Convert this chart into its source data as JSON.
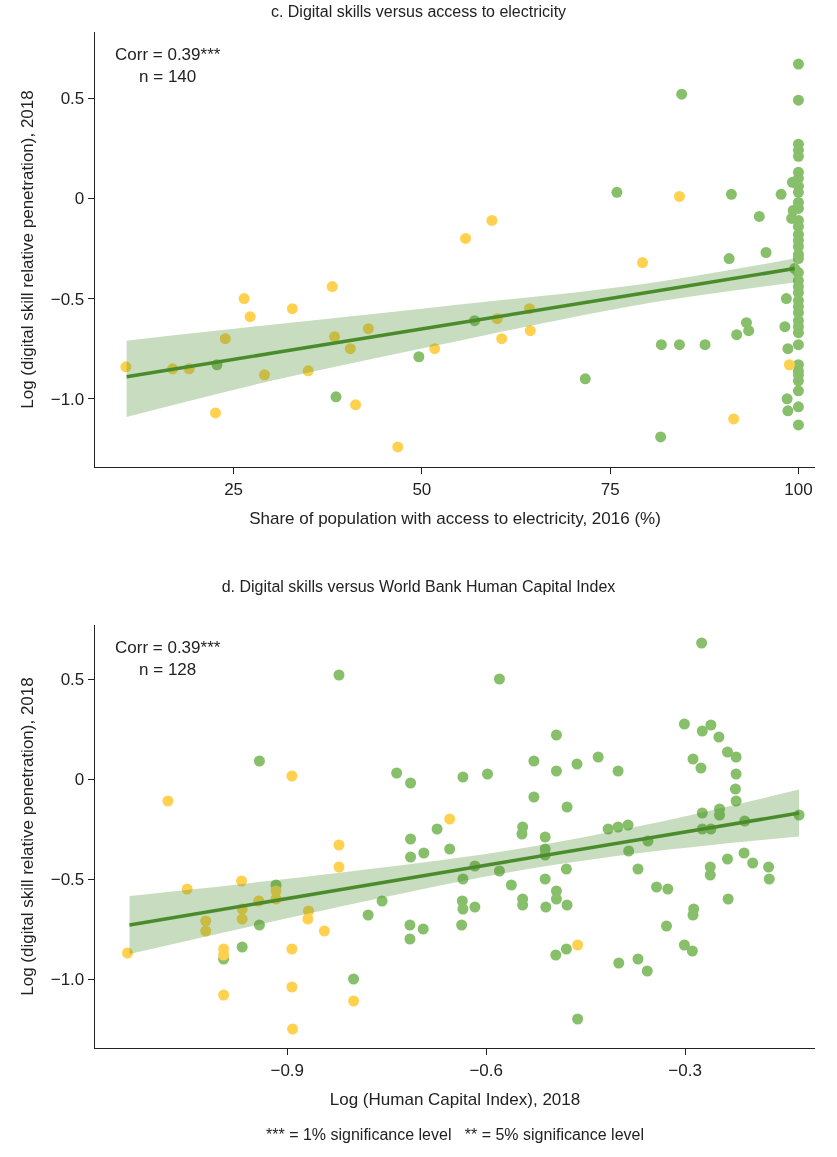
{
  "chart_data": [
    {
      "type": "scatter",
      "title": "c. Digital skills versus access to electricity",
      "xlabel": "Share of population with access to electricity, 2016 (%)",
      "ylabel": "Log (digital skill relative penetration), 2018",
      "annotations": [
        "Corr = 0.39***\nn = 140"
      ],
      "xlim": [
        6.6,
        102.2
      ],
      "xticks": [
        25,
        50,
        75,
        100
      ],
      "ylim": [
        -1.34,
        0.83
      ],
      "yticks": [
        {
          "value": 0.5,
          "label": "0.5"
        },
        {
          "value": 0,
          "label": "0"
        },
        {
          "value": -0.5,
          "label": "−0.5"
        },
        {
          "value": -1,
          "label": "−1.0"
        }
      ],
      "grid": false,
      "marker": "circle",
      "series": [
        {
          "color": "#ffd14f",
          "x": [
            10.7,
            16.9,
            19.1,
            22.6,
            23.9,
            26.4,
            27.2,
            29.1,
            32.8,
            34.9,
            38.1,
            38.4,
            40.5,
            41.2,
            42.9,
            46.8,
            51.7,
            55.8,
            59.3,
            79.3,
            84.2,
            60.0,
            60.6,
            64.3,
            64.4,
            98.8,
            91.4
          ],
          "values": [
            -0.84,
            -0.85,
            -0.85,
            -1.07,
            -0.7,
            -0.5,
            -0.59,
            -0.88,
            -0.55,
            -0.86,
            -0.44,
            -0.69,
            -0.75,
            -1.03,
            -0.65,
            -1.24,
            -0.75,
            -0.2,
            -0.11,
            -0.32,
            0.01,
            -0.6,
            -0.7,
            -0.55,
            -0.66,
            -0.83,
            -1.1
          ]
        },
        {
          "color": "#88bf6a",
          "x": [
            22.8,
            38.6,
            49.6,
            100,
            84.5,
            100,
            75.9,
            91.1,
            97.7,
            94.8,
            95.7,
            90.8,
            99.5,
            98.4,
            98.2,
            98.6,
            98.5,
            98.6,
            57.0,
            71.7,
            81.8,
            84.2,
            87.6,
            81.7,
            91.8,
            93.1,
            93.4,
            99.3,
            99.1,
            99.2,
            100,
            100,
            100,
            100,
            100,
            100,
            100,
            100,
            100,
            100,
            100,
            100,
            100,
            100,
            100,
            100,
            100,
            100,
            100,
            100,
            100,
            100,
            100,
            100,
            100,
            100,
            100,
            100,
            100,
            100,
            100,
            100,
            100,
            100
          ],
          "values": [
            -0.83,
            -0.99,
            -0.79,
            0.67,
            0.52,
            0.49,
            0.03,
            0.02,
            0.02,
            -0.09,
            -0.27,
            -0.3,
            -0.35,
            -0.5,
            -0.64,
            -0.75,
            -1.0,
            -1.06,
            -0.61,
            -0.9,
            -0.73,
            -0.73,
            -0.73,
            -1.19,
            -0.68,
            -0.62,
            -0.66,
            -0.06,
            -0.1,
            0.08,
            0.27,
            0.24,
            0.21,
            0.13,
            0.1,
            0.06,
            0.03,
            -0.02,
            -0.05,
            -0.11,
            -0.14,
            -0.18,
            -0.21,
            -0.24,
            -0.28,
            -0.3,
            -0.37,
            -0.41,
            -0.44,
            -0.47,
            -0.51,
            -0.54,
            -0.57,
            -0.61,
            -0.64,
            -0.67,
            -0.73,
            -0.83,
            -0.86,
            -0.88,
            -0.91,
            -0.96,
            -1.04,
            -1.13
          ]
        },
        {
          "type": "line",
          "color": "#4a8c2c",
          "line_style": "solid",
          "marker": "none",
          "x": [
            10.8,
            30,
            52.4,
            78.9,
            99.5
          ],
          "values": [
            -0.89,
            -0.773,
            -0.637,
            -0.476,
            -0.35
          ],
          "upper": [
            -0.71,
            -0.63,
            -0.54,
            -0.43,
            -0.3
          ],
          "lower": [
            -1.09,
            -0.91,
            -0.73,
            -0.53,
            -0.42
          ]
        }
      ]
    },
    {
      "type": "scatter",
      "title": "d. Digital skills versus World Bank Human Capital Index",
      "xlabel": "Log (Human Capital Index), 2018",
      "ylabel": "Log (digital skill relative penetration), 2018",
      "annotations": [
        "Corr = 0.39***\nn = 128",
        "*** = 1% significance level   ** = 5% significance level"
      ],
      "xlim": [
        -1.19,
        -0.104
      ],
      "xticks": [
        {
          "value": -0.9,
          "label": "−0.9"
        },
        {
          "value": -0.6,
          "label": "−0.6"
        },
        {
          "value": -0.3,
          "label": "−0.3"
        }
      ],
      "ylim": [
        -1.345,
        0.77
      ],
      "yticks": [
        {
          "value": 0.5,
          "label": "0.5"
        },
        {
          "value": 0,
          "label": "0"
        },
        {
          "value": -0.5,
          "label": "−0.5"
        },
        {
          "value": -1,
          "label": "−1.0"
        }
      ],
      "grid": false,
      "marker": "circle",
      "series": [
        {
          "color": "#ffd14f",
          "x": [
            -1.141,
            -1.08,
            -1.051,
            -1.023,
            -1.023,
            -0.996,
            -0.996,
            -0.996,
            -0.969,
            -0.968,
            -0.968,
            -0.943,
            -0.917,
            -0.917,
            -0.893,
            -0.893,
            -0.893,
            -0.892,
            -0.868,
            -0.869,
            -0.844,
            -0.822,
            -0.822,
            -0.8,
            -0.655,
            -0.462
          ],
          "values": [
            -0.87,
            -0.11,
            -0.55,
            -0.71,
            -0.76,
            -0.85,
            -0.88,
            -1.08,
            -0.51,
            -0.65,
            -0.7,
            -0.61,
            -0.56,
            -0.6,
            0.015,
            -0.85,
            -1.04,
            -1.25,
            -0.66,
            -0.7,
            -0.76,
            -0.33,
            -0.44,
            -1.11,
            -0.2,
            -0.83
          ]
        },
        {
          "color": "#88bf6a",
          "x": [
            -0.822,
            -0.942,
            -0.917,
            -0.942,
            -0.968,
            -0.996,
            -0.8,
            -0.778,
            -0.757,
            -0.735,
            -0.714,
            -0.714,
            -0.714,
            -0.694,
            -0.715,
            -0.715,
            -0.695,
            -0.674,
            -0.655,
            -0.275,
            -0.58,
            -0.301,
            -0.274,
            -0.261,
            -0.249,
            -0.494,
            -0.236,
            -0.223,
            -0.223,
            -0.224,
            -0.223,
            -0.288,
            -0.276,
            -0.431,
            -0.463,
            -0.401,
            -0.494,
            -0.528,
            -0.635,
            -0.598,
            -0.528,
            -0.478,
            -0.545,
            -0.546,
            -0.511,
            -0.511,
            -0.511,
            -0.416,
            -0.401,
            -0.386,
            -0.356,
            -0.385,
            -0.371,
            -0.343,
            -0.326,
            -0.328,
            -0.301,
            -0.289,
            -0.287,
            -0.288,
            -0.371,
            -0.357,
            -0.4,
            -0.462,
            -0.479,
            -0.495,
            -0.478,
            -0.494,
            -0.494,
            -0.479,
            -0.51,
            -0.511,
            -0.545,
            -0.545,
            -0.562,
            -0.58,
            -0.617,
            -0.635,
            -0.636,
            -0.635,
            -0.617,
            -0.637,
            -0.274,
            -0.248,
            -0.248,
            -0.21,
            -0.274,
            -0.261,
            -0.236,
            -0.211,
            -0.198,
            -0.262,
            -0.262,
            -0.174,
            -0.173,
            -0.235,
            -0.128
          ],
          "values": [
            0.52,
            0.09,
            -0.53,
            -0.73,
            -0.84,
            -0.9,
            -1.0,
            -0.68,
            -0.61,
            0.03,
            -0.02,
            -0.3,
            -0.39,
            -0.37,
            -0.73,
            -0.8,
            -0.75,
            -0.25,
            -0.35,
            0.68,
            0.5,
            0.275,
            0.24,
            0.27,
            0.21,
            0.22,
            0.135,
            0.11,
            0.025,
            -0.05,
            -0.11,
            0.1,
            0.055,
            0.11,
            0.075,
            0.04,
            0.04,
            0.09,
            0.01,
            0.025,
            -0.09,
            -0.14,
            -0.24,
            -0.275,
            -0.29,
            -0.35,
            -0.38,
            -0.25,
            -0.24,
            -0.23,
            -0.31,
            -0.36,
            -0.45,
            -0.54,
            -0.55,
            -0.735,
            -0.83,
            -0.86,
            -0.65,
            -0.68,
            -0.9,
            -0.96,
            -0.92,
            -1.2,
            -0.85,
            -0.88,
            -0.63,
            -0.56,
            -0.6,
            -0.45,
            -0.64,
            -0.5,
            -0.6,
            -0.63,
            -0.53,
            -0.46,
            -0.435,
            -0.5,
            -0.61,
            -0.65,
            -0.64,
            -0.73,
            -0.17,
            -0.15,
            -0.18,
            -0.21,
            -0.25,
            -0.25,
            -0.4,
            -0.37,
            -0.42,
            -0.44,
            -0.48,
            -0.44,
            -0.5,
            -0.6,
            -0.18
          ]
        },
        {
          "type": "line",
          "color": "#4a8c2c",
          "line_style": "solid",
          "marker": "none",
          "x": [
            -1.138,
            -0.85,
            -0.569,
            -0.35,
            -0.128
          ],
          "values": [
            -0.73,
            -0.57,
            -0.414,
            -0.293,
            -0.17
          ],
          "upper": [
            -0.585,
            -0.48,
            -0.359,
            -0.223,
            -0.053
          ],
          "lower": [
            -0.875,
            -0.66,
            -0.469,
            -0.363,
            -0.287
          ]
        }
      ]
    }
  ]
}
